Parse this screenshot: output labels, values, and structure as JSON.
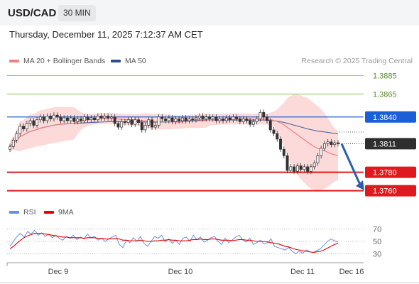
{
  "header": {
    "symbol": "USD/CAD",
    "interval": "30 MIN"
  },
  "datetime": "Thursday, December 11, 2025 7:12:37 AM CET",
  "legend": {
    "ma20": {
      "label": "MA 20 + Bollinger Bands",
      "color": "#f08080"
    },
    "ma50": {
      "label": "MA 50",
      "color": "#2d4f8f"
    }
  },
  "credit": "Research © 2025 Trading Central",
  "rsi_legend": {
    "rsi": {
      "label": "RSI",
      "color": "#6a8ee0"
    },
    "ma9": {
      "label": "9MA",
      "color": "#e60000"
    }
  },
  "chart_data": [
    {
      "type": "candlestick",
      "ylim": [
        1.3752,
        1.3893
      ],
      "levels": [
        {
          "value": 1.3885,
          "label": "1.3885",
          "color": "#8bc34a",
          "style": "thin"
        },
        {
          "value": 1.3865,
          "label": "1.3865",
          "color": "#8bc34a",
          "style": "thin"
        },
        {
          "value": 1.384,
          "label": "1.3840",
          "color": "#1a5fd6",
          "style": "box"
        },
        {
          "value": 1.3811,
          "label": "1.3811",
          "color": "#333333",
          "style": "current"
        },
        {
          "value": 1.378,
          "label": "1.3780",
          "color": "#e0191f",
          "style": "box"
        },
        {
          "value": 1.376,
          "label": "1.3760",
          "color": "#e0191f",
          "style": "box"
        }
      ],
      "x_ticks": [
        "Dec 9",
        "Dec 10",
        "Dec 11",
        "Dec 16"
      ],
      "forecast": {
        "from": 1.3811,
        "to": 1.3762,
        "color": "#2d5ea8"
      },
      "candles": [
        [
          1.3805,
          1.3808
        ],
        [
          1.3808,
          1.3815
        ],
        [
          1.3815,
          1.3822
        ],
        [
          1.3822,
          1.383
        ],
        [
          1.383,
          1.3827
        ],
        [
          1.3827,
          1.3833
        ],
        [
          1.3833,
          1.3836
        ],
        [
          1.3836,
          1.3831
        ],
        [
          1.3831,
          1.3837
        ],
        [
          1.3837,
          1.384
        ],
        [
          1.384,
          1.3836
        ],
        [
          1.3836,
          1.3841
        ],
        [
          1.3841,
          1.3838
        ],
        [
          1.3838,
          1.3842
        ],
        [
          1.3842,
          1.384
        ],
        [
          1.384,
          1.3836
        ],
        [
          1.3836,
          1.3839
        ],
        [
          1.3839,
          1.3836
        ],
        [
          1.3836,
          1.3839
        ],
        [
          1.3839,
          1.3835
        ],
        [
          1.3835,
          1.3838
        ],
        [
          1.3838,
          1.3836
        ],
        [
          1.3836,
          1.384
        ],
        [
          1.384,
          1.3837
        ],
        [
          1.3837,
          1.3839
        ],
        [
          1.3839,
          1.3837
        ],
        [
          1.3837,
          1.3841
        ],
        [
          1.3841,
          1.3839
        ],
        [
          1.3839,
          1.3841
        ],
        [
          1.3841,
          1.3839
        ],
        [
          1.3839,
          1.384
        ],
        [
          1.384,
          1.3833
        ],
        [
          1.3833,
          1.3829
        ],
        [
          1.3829,
          1.3835
        ],
        [
          1.3835,
          1.3834
        ],
        [
          1.3834,
          1.3837
        ],
        [
          1.3837,
          1.3832
        ],
        [
          1.3832,
          1.3837
        ],
        [
          1.3837,
          1.3834
        ],
        [
          1.3834,
          1.3826
        ],
        [
          1.3826,
          1.3831
        ],
        [
          1.3831,
          1.3837
        ],
        [
          1.3837,
          1.3829
        ],
        [
          1.3829,
          1.3831
        ],
        [
          1.3831,
          1.384
        ],
        [
          1.384,
          1.3838
        ],
        [
          1.3838,
          1.3836
        ],
        [
          1.3836,
          1.3839
        ],
        [
          1.3839,
          1.3835
        ],
        [
          1.3835,
          1.3838
        ],
        [
          1.3838,
          1.3836
        ],
        [
          1.3836,
          1.3839
        ],
        [
          1.3839,
          1.3836
        ],
        [
          1.3836,
          1.3838
        ],
        [
          1.3838,
          1.3837
        ],
        [
          1.3837,
          1.3839
        ],
        [
          1.3839,
          1.3841
        ],
        [
          1.3841,
          1.3838
        ],
        [
          1.3838,
          1.384
        ],
        [
          1.384,
          1.3838
        ],
        [
          1.3838,
          1.384
        ],
        [
          1.384,
          1.3836
        ],
        [
          1.3836,
          1.3838
        ],
        [
          1.3838,
          1.3836
        ],
        [
          1.3836,
          1.3839
        ],
        [
          1.3839,
          1.3837
        ],
        [
          1.3837,
          1.384
        ],
        [
          1.384,
          1.3838
        ],
        [
          1.3838,
          1.3835
        ],
        [
          1.3835,
          1.3838
        ],
        [
          1.3838,
          1.3836
        ],
        [
          1.3836,
          1.3832
        ],
        [
          1.3832,
          1.3835
        ],
        [
          1.3835,
          1.3838
        ],
        [
          1.3838,
          1.3845
        ],
        [
          1.3845,
          1.384
        ],
        [
          1.384,
          1.3836
        ],
        [
          1.3836,
          1.3826
        ],
        [
          1.3826,
          1.3822
        ],
        [
          1.3822,
          1.3816
        ],
        [
          1.3816,
          1.3805
        ],
        [
          1.3805,
          1.3798
        ],
        [
          1.3798,
          1.3782
        ],
        [
          1.3782,
          1.3786
        ],
        [
          1.3786,
          1.3781
        ],
        [
          1.3781,
          1.3787
        ],
        [
          1.3787,
          1.3783
        ],
        [
          1.3783,
          1.3786
        ],
        [
          1.3786,
          1.3781
        ],
        [
          1.3781,
          1.3786
        ],
        [
          1.3786,
          1.379
        ],
        [
          1.379,
          1.3798
        ],
        [
          1.3798,
          1.3806
        ],
        [
          1.3806,
          1.3811
        ],
        [
          1.3811,
          1.3813
        ],
        [
          1.3813,
          1.381
        ],
        [
          1.381,
          1.3812
        ],
        [
          1.3812,
          1.3811
        ]
      ]
    },
    {
      "type": "line",
      "ylim": [
        20,
        80
      ],
      "y_ticks": [
        70,
        50,
        30
      ],
      "series": [
        {
          "name": "RSI",
          "values": [
            42,
            50,
            58,
            63,
            57,
            66,
            62,
            68,
            60,
            64,
            58,
            62,
            56,
            60,
            55,
            52,
            58,
            55,
            60,
            53,
            57,
            54,
            62,
            56,
            58,
            52,
            55,
            50,
            54,
            57,
            60,
            45,
            40,
            52,
            48,
            56,
            50,
            58,
            47,
            42,
            50,
            58,
            55,
            60,
            49,
            54,
            47,
            52,
            45,
            55,
            57,
            50,
            60,
            53,
            57,
            49,
            52,
            56,
            58,
            50,
            45,
            55,
            48,
            52,
            57,
            60,
            52,
            49,
            55,
            45,
            48,
            52,
            46,
            48,
            54,
            42,
            40,
            38,
            36,
            40,
            34,
            30,
            34,
            31,
            36,
            33,
            32,
            35,
            38,
            44,
            50,
            54,
            51,
            49
          ]
        },
        {
          "name": "9MA",
          "values": [
            38,
            42,
            47,
            52,
            56,
            59,
            61,
            63,
            63,
            63,
            62,
            61,
            60,
            59,
            58,
            57,
            57,
            56,
            56,
            56,
            56,
            55,
            56,
            56,
            56,
            55,
            55,
            54,
            54,
            54,
            55,
            54,
            52,
            52,
            51,
            51,
            51,
            52,
            51,
            50,
            50,
            51,
            51,
            52,
            52,
            53,
            52,
            52,
            51,
            51,
            51,
            52,
            53,
            53,
            54,
            53,
            53,
            54,
            54,
            53,
            52,
            52,
            52,
            51,
            52,
            53,
            53,
            52,
            52,
            51,
            50,
            50,
            50,
            49,
            48,
            47,
            46,
            44,
            42,
            41,
            39,
            37,
            36,
            35,
            34,
            33,
            32,
            33,
            34,
            36,
            39,
            42,
            45,
            47
          ]
        }
      ]
    }
  ]
}
